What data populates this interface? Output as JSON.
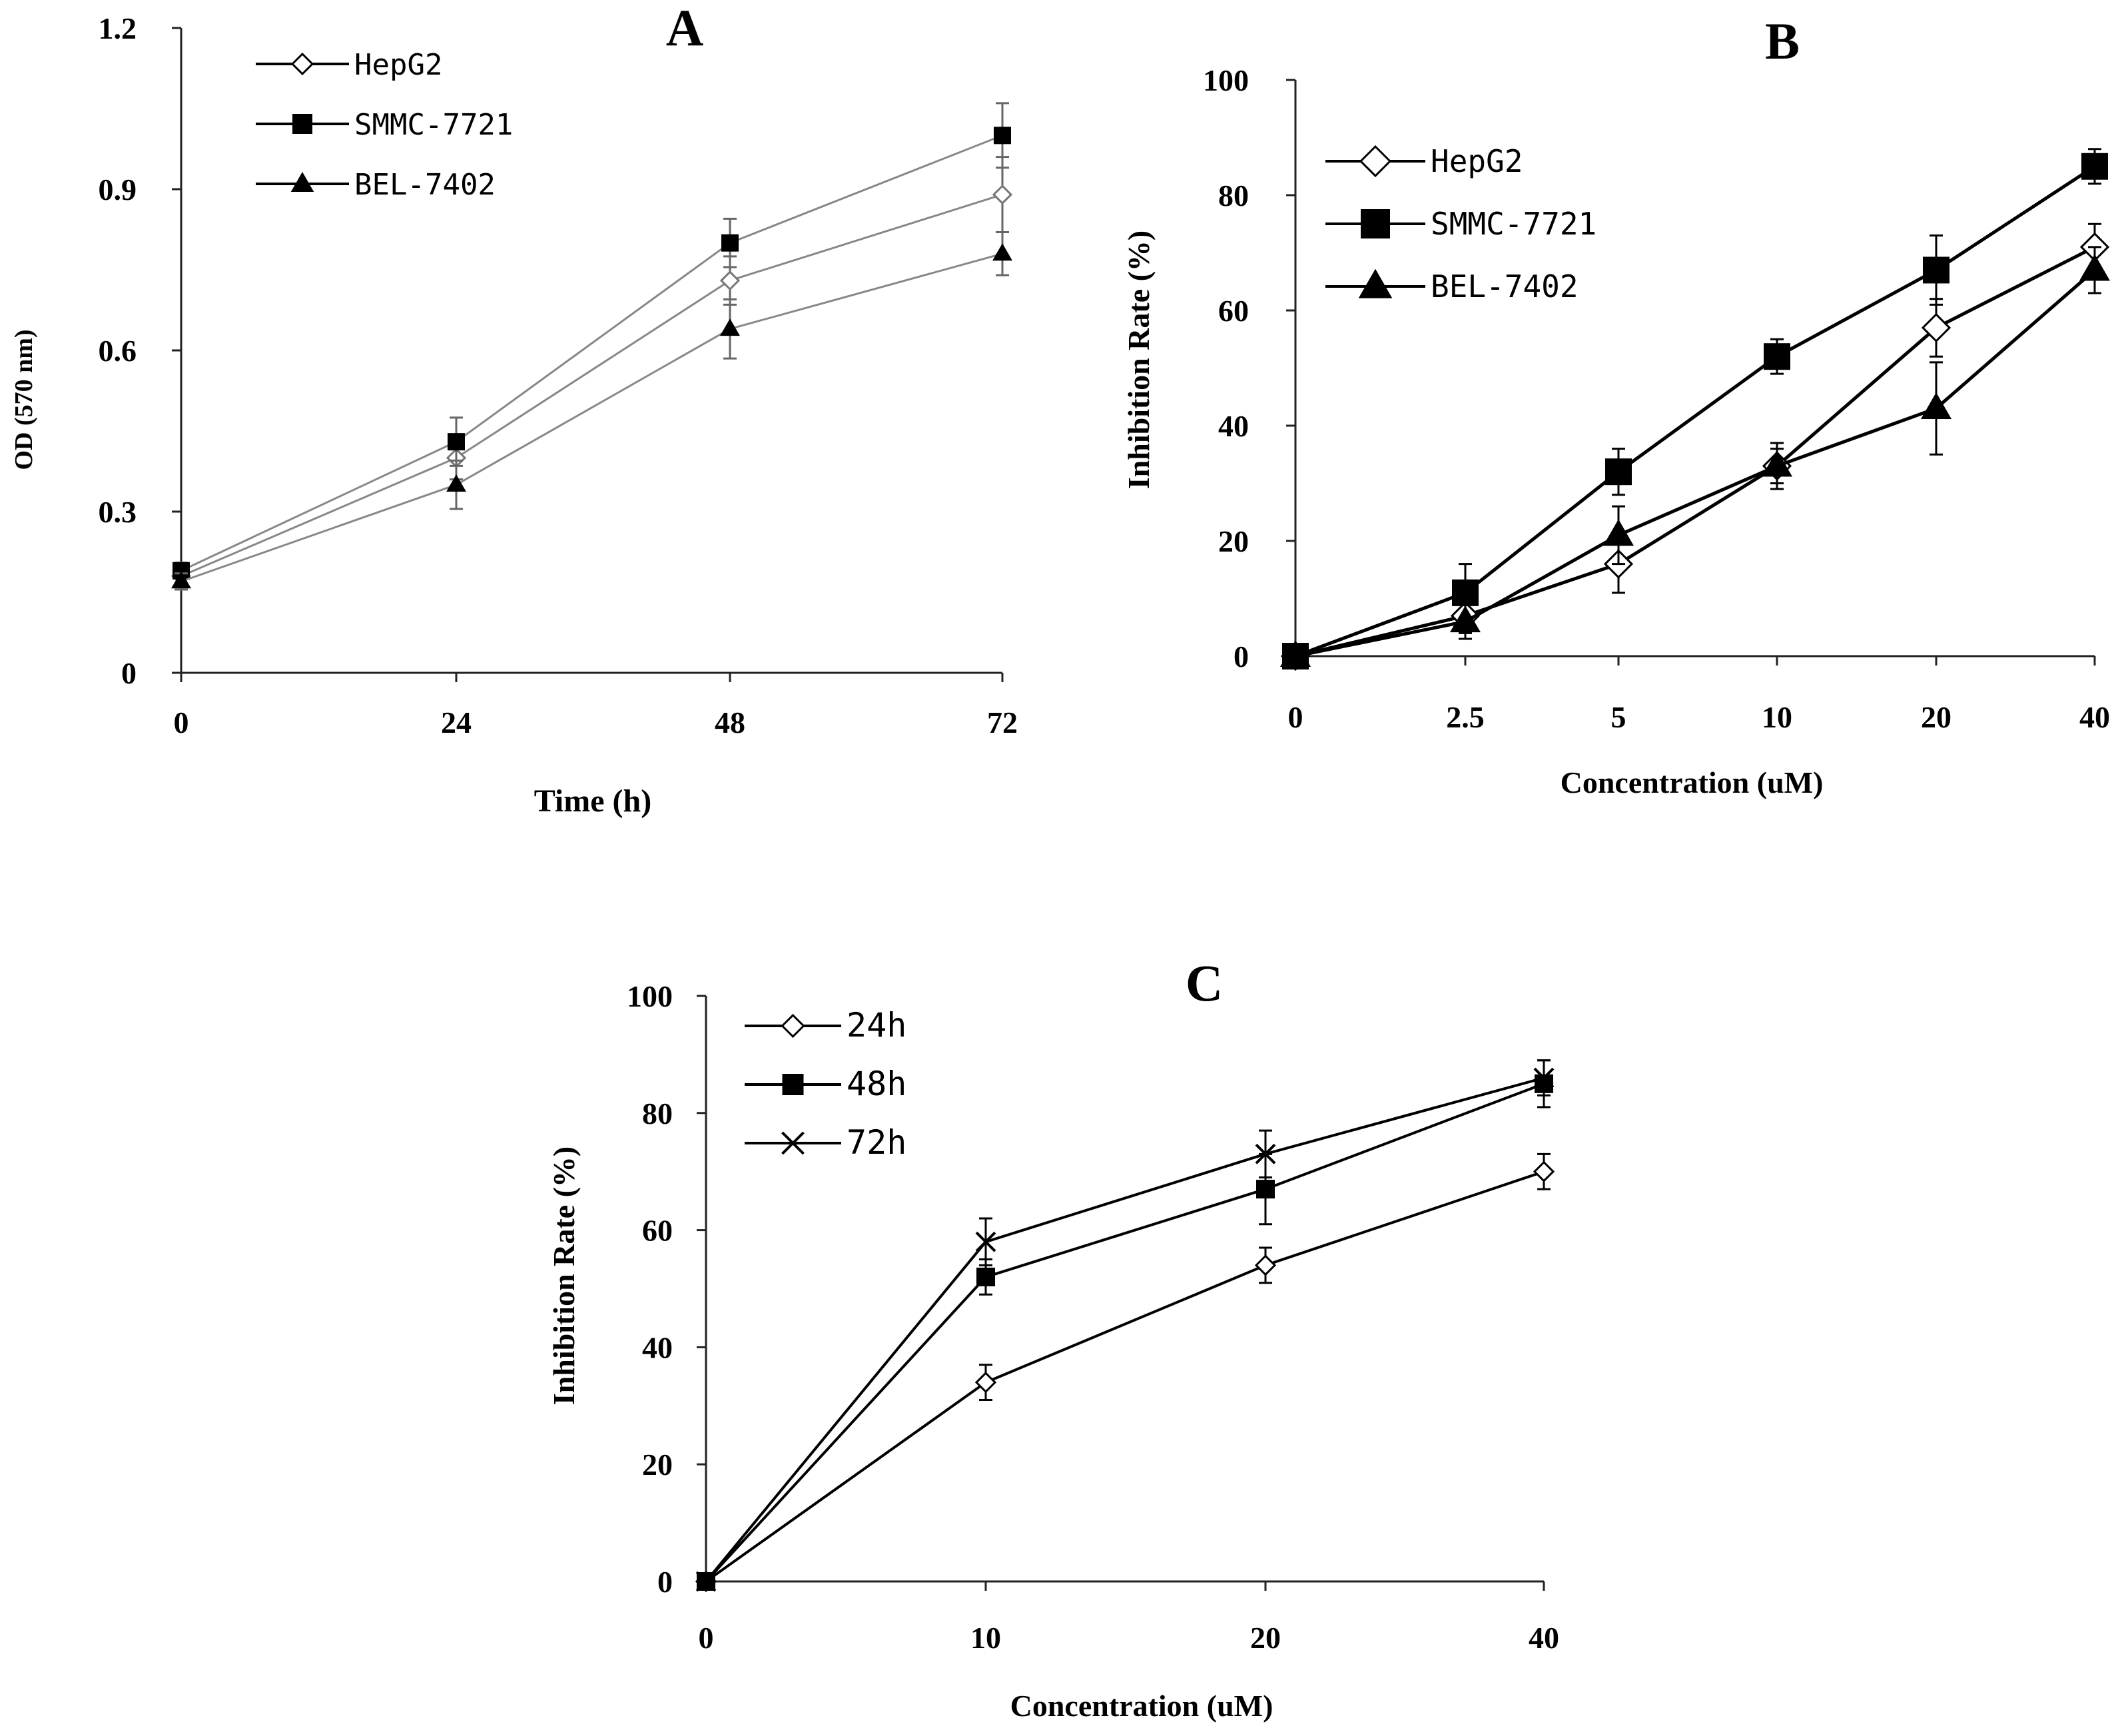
{
  "chart_data": [
    {
      "id": "A",
      "type": "line",
      "panel_label": "A",
      "title": "",
      "xlabel": "Time (h)",
      "ylabel": "OD (570 nm)",
      "categories": [
        "0",
        "24",
        "48",
        "72"
      ],
      "x": [
        0,
        24,
        48,
        72
      ],
      "xlim": [
        0,
        72
      ],
      "ylim": [
        0,
        1.2
      ],
      "yticks": [
        "0",
        "0.3",
        "0.6",
        "0.9",
        "1.2"
      ],
      "ytick_values": [
        0,
        0.3,
        0.6,
        0.9,
        1.2
      ],
      "grid": false,
      "legend_position": "top-left",
      "series": [
        {
          "name": "HepG2",
          "marker": "diamond-open",
          "color": "#888888",
          "values": [
            0.18,
            0.4,
            0.73,
            0.89
          ],
          "errors": [
            0.015,
            0.04,
            0.045,
            0.07
          ]
        },
        {
          "name": "SMMC-7721",
          "marker": "square",
          "color": "#888888",
          "values": [
            0.19,
            0.43,
            0.8,
            1.0
          ],
          "errors": [
            0.015,
            0.045,
            0.045,
            0.06
          ]
        },
        {
          "name": "BEL-7402",
          "marker": "triangle",
          "color": "#888888",
          "values": [
            0.17,
            0.35,
            0.64,
            0.78
          ],
          "errors": [
            0.015,
            0.045,
            0.055,
            0.04
          ]
        }
      ]
    },
    {
      "id": "B",
      "type": "line",
      "panel_label": "B",
      "title": "",
      "xlabel": "Concentration (uM)",
      "ylabel": "Inhibition Rate (%)",
      "categories": [
        "0",
        "2.5",
        "5",
        "10",
        "20",
        "40"
      ],
      "ylim": [
        0,
        100
      ],
      "yticks": [
        "0",
        "20",
        "40",
        "60",
        "80",
        "100"
      ],
      "ytick_values": [
        0,
        20,
        40,
        60,
        80,
        100
      ],
      "grid": false,
      "legend_position": "top-left",
      "series": [
        {
          "name": "HepG2",
          "marker": "diamond-open",
          "color": "#000000",
          "values": [
            0,
            7,
            16,
            33,
            57,
            71
          ],
          "errors": [
            0,
            3,
            5,
            4,
            5,
            4
          ]
        },
        {
          "name": "SMMC-7721",
          "marker": "square",
          "color": "#000000",
          "values": [
            0,
            11,
            32,
            52,
            67,
            85
          ],
          "errors": [
            0,
            5,
            4,
            3,
            6,
            3
          ]
        },
        {
          "name": "BEL-7402",
          "marker": "triangle",
          "color": "#000000",
          "values": [
            0,
            6,
            21,
            33,
            43,
            67
          ],
          "errors": [
            0,
            3,
            5,
            3,
            8,
            4
          ]
        }
      ]
    },
    {
      "id": "C",
      "type": "line",
      "panel_label": "C",
      "title": "",
      "xlabel": "Concentration (uM)",
      "ylabel": "Inhibition Rate (%)",
      "categories": [
        "0",
        "10",
        "20",
        "40"
      ],
      "ylim": [
        0,
        100
      ],
      "yticks": [
        "0",
        "20",
        "40",
        "60",
        "80",
        "100"
      ],
      "ytick_values": [
        0,
        20,
        40,
        60,
        80,
        100
      ],
      "grid": false,
      "legend_position": "top-left",
      "series": [
        {
          "name": "24h",
          "marker": "diamond-open",
          "color": "#000000",
          "values": [
            0,
            34,
            54,
            70
          ],
          "errors": [
            0,
            3,
            3,
            3
          ]
        },
        {
          "name": "48h",
          "marker": "square",
          "color": "#000000",
          "values": [
            0,
            52,
            67,
            85
          ],
          "errors": [
            0,
            3,
            6,
            4
          ]
        },
        {
          "name": "72h",
          "marker": "x",
          "color": "#000000",
          "values": [
            0,
            58,
            73,
            86
          ],
          "errors": [
            0,
            4,
            4,
            3
          ]
        }
      ]
    }
  ]
}
